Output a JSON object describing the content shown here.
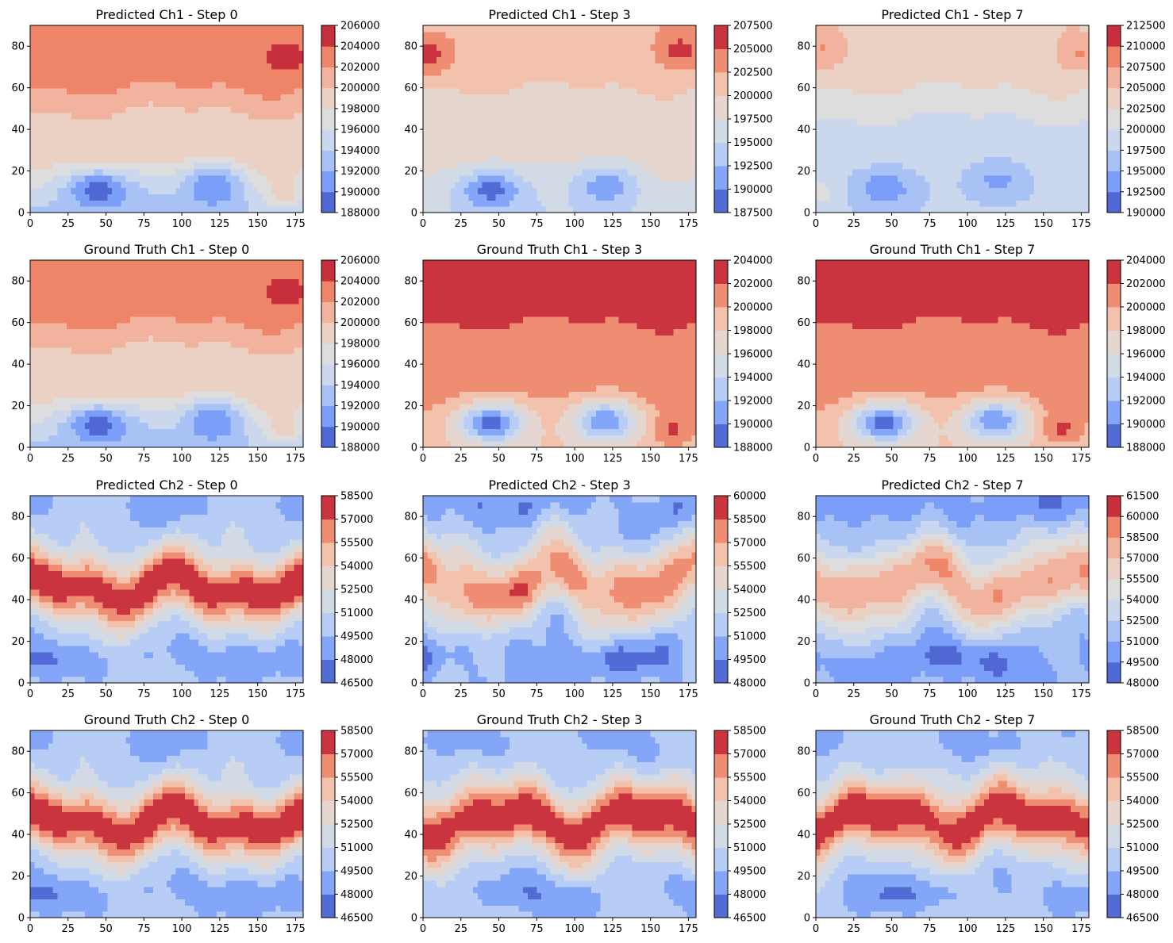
{
  "figure": {
    "colormap": "coolwarm",
    "colormap_stops": [
      "#3b4cc0",
      "#7b9ff9",
      "#c0d4f5",
      "#dddddd",
      "#f2cbb7",
      "#ee8468",
      "#b40426"
    ],
    "axis_color": "#000000"
  },
  "chart_data": [
    {
      "type": "heatmap",
      "title": "Predicted Ch1 - Step 0",
      "xlim": [
        0,
        180
      ],
      "ylim": [
        0,
        90
      ],
      "xticks": [
        "0",
        "25",
        "50",
        "75",
        "100",
        "125",
        "150",
        "175"
      ],
      "yticks": [
        "0",
        "20",
        "40",
        "60",
        "80"
      ],
      "colorbar": {
        "min": 188000,
        "max": 206000,
        "ticks": [
          "188000",
          "190000",
          "192000",
          "194000",
          "196000",
          "198000",
          "200000",
          "202000",
          "204000",
          "206000"
        ]
      },
      "field": {
        "pattern": "ch1",
        "top_level": 0.82,
        "mid_level": 0.62,
        "low_level": 0.3,
        "lows": [
          {
            "x": 45,
            "y": 11,
            "depth": 0.92
          },
          {
            "x": 120,
            "y": 13,
            "depth": 0.72
          }
        ],
        "highs": [
          {
            "x": 168,
            "y": 74,
            "amp": 0.12
          },
          {
            "x": 168,
            "y": 8,
            "amp": 0.16
          }
        ]
      }
    },
    {
      "type": "heatmap",
      "title": "Predicted Ch1 - Step 3",
      "xlim": [
        0,
        180
      ],
      "ylim": [
        0,
        90
      ],
      "xticks": [
        "0",
        "25",
        "50",
        "75",
        "100",
        "125",
        "150",
        "175"
      ],
      "yticks": [
        "0",
        "20",
        "40",
        "60",
        "80"
      ],
      "colorbar": {
        "min": 187500,
        "max": 207500,
        "ticks": [
          "187500",
          "190000",
          "192500",
          "195000",
          "197500",
          "200000",
          "202500",
          "205000",
          "207500"
        ]
      },
      "field": {
        "pattern": "ch1",
        "top_level": 0.7,
        "mid_level": 0.55,
        "low_level": 0.4,
        "lows": [
          {
            "x": 45,
            "y": 11,
            "depth": 0.85
          },
          {
            "x": 120,
            "y": 13,
            "depth": 0.62
          }
        ],
        "highs": [
          {
            "x": 5,
            "y": 76,
            "amp": 0.22
          },
          {
            "x": 170,
            "y": 78,
            "amp": 0.22
          }
        ]
      }
    },
    {
      "type": "heatmap",
      "title": "Predicted Ch1 - Step 7",
      "xlim": [
        0,
        180
      ],
      "ylim": [
        0,
        90
      ],
      "xticks": [
        "0",
        "25",
        "50",
        "75",
        "100",
        "125",
        "150",
        "175"
      ],
      "yticks": [
        "0",
        "20",
        "40",
        "60",
        "80"
      ],
      "colorbar": {
        "min": 190000,
        "max": 212500,
        "ticks": [
          "190000",
          "192500",
          "195000",
          "197500",
          "200000",
          "202500",
          "205000",
          "207500",
          "210000",
          "212500"
        ]
      },
      "field": {
        "pattern": "ch1",
        "top_level": 0.62,
        "mid_level": 0.4,
        "low_level": 0.36,
        "lows": [
          {
            "x": 45,
            "y": 12,
            "depth": 0.62
          },
          {
            "x": 120,
            "y": 16,
            "depth": 0.48
          }
        ],
        "highs": [
          {
            "x": 5,
            "y": 78,
            "amp": 0.14
          },
          {
            "x": 175,
            "y": 76,
            "amp": 0.14
          },
          {
            "x": 5,
            "y": 10,
            "amp": 0.1
          }
        ]
      }
    },
    {
      "type": "heatmap",
      "title": "Ground Truth Ch1 - Step 0",
      "xlim": [
        0,
        180
      ],
      "ylim": [
        0,
        90
      ],
      "xticks": [
        "0",
        "25",
        "50",
        "75",
        "100",
        "125",
        "150",
        "175"
      ],
      "yticks": [
        "0",
        "20",
        "40",
        "60",
        "80"
      ],
      "colorbar": {
        "min": 188000,
        "max": 206000,
        "ticks": [
          "188000",
          "190000",
          "192000",
          "194000",
          "196000",
          "198000",
          "200000",
          "202000",
          "204000",
          "206000"
        ]
      },
      "field": {
        "pattern": "ch1",
        "top_level": 0.82,
        "mid_level": 0.62,
        "low_level": 0.3,
        "lows": [
          {
            "x": 45,
            "y": 11,
            "depth": 0.92
          },
          {
            "x": 120,
            "y": 13,
            "depth": 0.72
          }
        ],
        "highs": [
          {
            "x": 168,
            "y": 74,
            "amp": 0.12
          },
          {
            "x": 168,
            "y": 8,
            "amp": 0.16
          }
        ]
      }
    },
    {
      "type": "heatmap",
      "title": "Ground Truth Ch1 - Step 3",
      "xlim": [
        0,
        180
      ],
      "ylim": [
        0,
        90
      ],
      "xticks": [
        "0",
        "25",
        "50",
        "75",
        "100",
        "125",
        "150",
        "175"
      ],
      "yticks": [
        "0",
        "20",
        "40",
        "60",
        "80"
      ],
      "colorbar": {
        "min": 188000,
        "max": 204000,
        "ticks": [
          "188000",
          "190000",
          "192000",
          "194000",
          "196000",
          "198000",
          "200000",
          "202000",
          "204000"
        ]
      },
      "field": {
        "pattern": "ch1",
        "top_level": 0.96,
        "mid_level": 0.8,
        "low_level": 0.66,
        "lows": [
          {
            "x": 45,
            "y": 12,
            "depth": 0.92
          },
          {
            "x": 120,
            "y": 13,
            "depth": 0.8
          }
        ],
        "highs": [
          {
            "x": 165,
            "y": 8,
            "amp": 0.18
          }
        ]
      }
    },
    {
      "type": "heatmap",
      "title": "Ground Truth Ch1 - Step 7",
      "xlim": [
        0,
        180
      ],
      "ylim": [
        0,
        90
      ],
      "xticks": [
        "0",
        "25",
        "50",
        "75",
        "100",
        "125",
        "150",
        "175"
      ],
      "yticks": [
        "0",
        "20",
        "40",
        "60",
        "80"
      ],
      "colorbar": {
        "min": 188000,
        "max": 204000,
        "ticks": [
          "188000",
          "190000",
          "192000",
          "194000",
          "196000",
          "198000",
          "200000",
          "202000",
          "204000"
        ]
      },
      "field": {
        "pattern": "ch1",
        "top_level": 0.96,
        "mid_level": 0.8,
        "low_level": 0.66,
        "lows": [
          {
            "x": 45,
            "y": 12,
            "depth": 0.92
          },
          {
            "x": 118,
            "y": 13,
            "depth": 0.8
          }
        ],
        "highs": [
          {
            "x": 162,
            "y": 9,
            "amp": 0.18
          }
        ]
      }
    },
    {
      "type": "heatmap",
      "title": "Predicted Ch2 - Step 0",
      "xlim": [
        0,
        180
      ],
      "ylim": [
        0,
        90
      ],
      "xticks": [
        "0",
        "25",
        "50",
        "75",
        "100",
        "125",
        "150",
        "175"
      ],
      "yticks": [
        "0",
        "20",
        "40",
        "60",
        "80"
      ],
      "colorbar": {
        "min": 46500,
        "max": 58500,
        "ticks": [
          "46500",
          "48000",
          "49500",
          "51000",
          "52500",
          "54000",
          "55500",
          "57000",
          "58500"
        ]
      },
      "field": {
        "pattern": "ch2",
        "band_peak": 0.98,
        "band_center": 46,
        "band_width": 19,
        "base": 0.3,
        "wave_amp": 5,
        "noise": 0.08,
        "seed": 1
      }
    },
    {
      "type": "heatmap",
      "title": "Predicted Ch2 - Step 3",
      "xlim": [
        0,
        180
      ],
      "ylim": [
        0,
        90
      ],
      "xticks": [
        "0",
        "25",
        "50",
        "75",
        "100",
        "125",
        "150",
        "175"
      ],
      "yticks": [
        "0",
        "20",
        "40",
        "60",
        "80"
      ],
      "colorbar": {
        "min": 48000,
        "max": 60000,
        "ticks": [
          "48000",
          "49500",
          "51000",
          "52500",
          "54000",
          "55500",
          "57000",
          "58500",
          "60000"
        ]
      },
      "field": {
        "pattern": "ch2",
        "band_peak": 0.8,
        "band_center": 48,
        "band_width": 22,
        "base": 0.25,
        "wave_amp": 7,
        "noise": 0.14,
        "seed": 2
      }
    },
    {
      "type": "heatmap",
      "title": "Predicted Ch2 - Step 7",
      "xlim": [
        0,
        180
      ],
      "ylim": [
        0,
        90
      ],
      "xticks": [
        "0",
        "25",
        "50",
        "75",
        "100",
        "125",
        "150",
        "175"
      ],
      "yticks": [
        "0",
        "20",
        "40",
        "60",
        "80"
      ],
      "colorbar": {
        "min": 48000,
        "max": 61500,
        "ticks": [
          "48000",
          "49500",
          "51000",
          "52500",
          "54000",
          "55500",
          "57000",
          "58500",
          "60000",
          "61500"
        ]
      },
      "field": {
        "pattern": "ch2",
        "band_peak": 0.74,
        "band_center": 48,
        "band_width": 24,
        "base": 0.22,
        "wave_amp": 6,
        "noise": 0.09,
        "seed": 3
      }
    },
    {
      "type": "heatmap",
      "title": "Ground Truth Ch2 - Step 0",
      "xlim": [
        0,
        180
      ],
      "ylim": [
        0,
        90
      ],
      "xticks": [
        "0",
        "25",
        "50",
        "75",
        "100",
        "125",
        "150",
        "175"
      ],
      "yticks": [
        "0",
        "20",
        "40",
        "60",
        "80"
      ],
      "colorbar": {
        "min": 46500,
        "max": 58500,
        "ticks": [
          "46500",
          "48000",
          "49500",
          "51000",
          "52500",
          "54000",
          "55500",
          "57000",
          "58500"
        ]
      },
      "field": {
        "pattern": "ch2",
        "band_peak": 0.98,
        "band_center": 46,
        "band_width": 19,
        "base": 0.3,
        "wave_amp": 5,
        "noise": 0.08,
        "seed": 1
      }
    },
    {
      "type": "heatmap",
      "title": "Ground Truth Ch2 - Step 3",
      "xlim": [
        0,
        180
      ],
      "ylim": [
        0,
        90
      ],
      "xticks": [
        "0",
        "25",
        "50",
        "75",
        "100",
        "125",
        "150",
        "175"
      ],
      "yticks": [
        "0",
        "20",
        "40",
        "60",
        "80"
      ],
      "colorbar": {
        "min": 46500,
        "max": 58500,
        "ticks": [
          "46500",
          "48000",
          "49500",
          "51000",
          "52500",
          "54000",
          "55500",
          "57000",
          "58500"
        ]
      },
      "field": {
        "pattern": "ch2",
        "band_peak": 0.98,
        "band_center": 47,
        "band_width": 20,
        "base": 0.3,
        "wave_amp": 5,
        "noise": 0.08,
        "seed": 4
      }
    },
    {
      "type": "heatmap",
      "title": "Ground Truth Ch2 - Step 7",
      "xlim": [
        0,
        180
      ],
      "ylim": [
        0,
        90
      ],
      "xticks": [
        "0",
        "25",
        "50",
        "75",
        "100",
        "125",
        "150",
        "175"
      ],
      "yticks": [
        "0",
        "20",
        "40",
        "60",
        "80"
      ],
      "colorbar": {
        "min": 46500,
        "max": 58500,
        "ticks": [
          "46500",
          "48000",
          "49500",
          "51000",
          "52500",
          "54000",
          "55500",
          "57000",
          "58500"
        ]
      },
      "field": {
        "pattern": "ch2",
        "band_peak": 0.98,
        "band_center": 48,
        "band_width": 20,
        "base": 0.3,
        "wave_amp": 5,
        "noise": 0.08,
        "seed": 5
      }
    }
  ]
}
